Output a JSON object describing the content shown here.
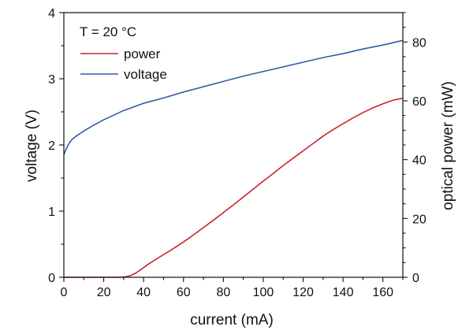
{
  "chart_data": {
    "type": "line",
    "xlabel": "current (mA)",
    "ylabel_left": "voltage (V)",
    "ylabel_right": "optical power (mW)",
    "xlim": [
      0,
      170
    ],
    "ylim_left": [
      0,
      4
    ],
    "ylim_right": [
      0,
      90
    ],
    "xticks": [
      0,
      20,
      40,
      60,
      80,
      100,
      120,
      140,
      160
    ],
    "yticks_left": [
      0,
      1,
      2,
      3,
      4
    ],
    "yticks_right": [
      0,
      20,
      40,
      60,
      80
    ],
    "legend": {
      "title": "T = 20 °C",
      "position": "top-left"
    },
    "series": [
      {
        "name": "power",
        "axis": "right",
        "color": "#c8232c",
        "x": [
          0,
          10,
          20,
          28,
          30,
          32,
          34,
          36,
          38,
          40,
          42,
          45,
          50,
          55,
          60,
          65,
          70,
          75,
          80,
          85,
          90,
          95,
          100,
          105,
          110,
          115,
          120,
          125,
          130,
          135,
          140,
          145,
          150,
          155,
          160,
          165,
          170
        ],
        "y": [
          0,
          0,
          0,
          0,
          0.1,
          0.3,
          0.7,
          1.4,
          2.3,
          3.3,
          4.3,
          5.6,
          7.7,
          9.8,
          12.0,
          14.4,
          16.9,
          19.4,
          22.0,
          24.6,
          27.3,
          30.0,
          32.7,
          35.3,
          38.0,
          40.5,
          43.0,
          45.5,
          48.0,
          50.2,
          52.2,
          54.2,
          56.0,
          57.6,
          59.0,
          60.2,
          60.9
        ]
      },
      {
        "name": "voltage",
        "axis": "left",
        "color": "#2e5fa3",
        "x": [
          0,
          1,
          2,
          3,
          4,
          6,
          8,
          10,
          15,
          20,
          25,
          30,
          40,
          50,
          60,
          70,
          80,
          90,
          100,
          110,
          120,
          130,
          140,
          150,
          160,
          170
        ],
        "y": [
          1.85,
          1.93,
          1.99,
          2.04,
          2.08,
          2.13,
          2.17,
          2.21,
          2.3,
          2.38,
          2.45,
          2.52,
          2.63,
          2.71,
          2.8,
          2.88,
          2.96,
          3.04,
          3.11,
          3.18,
          3.25,
          3.32,
          3.38,
          3.45,
          3.51,
          3.58
        ]
      }
    ]
  }
}
